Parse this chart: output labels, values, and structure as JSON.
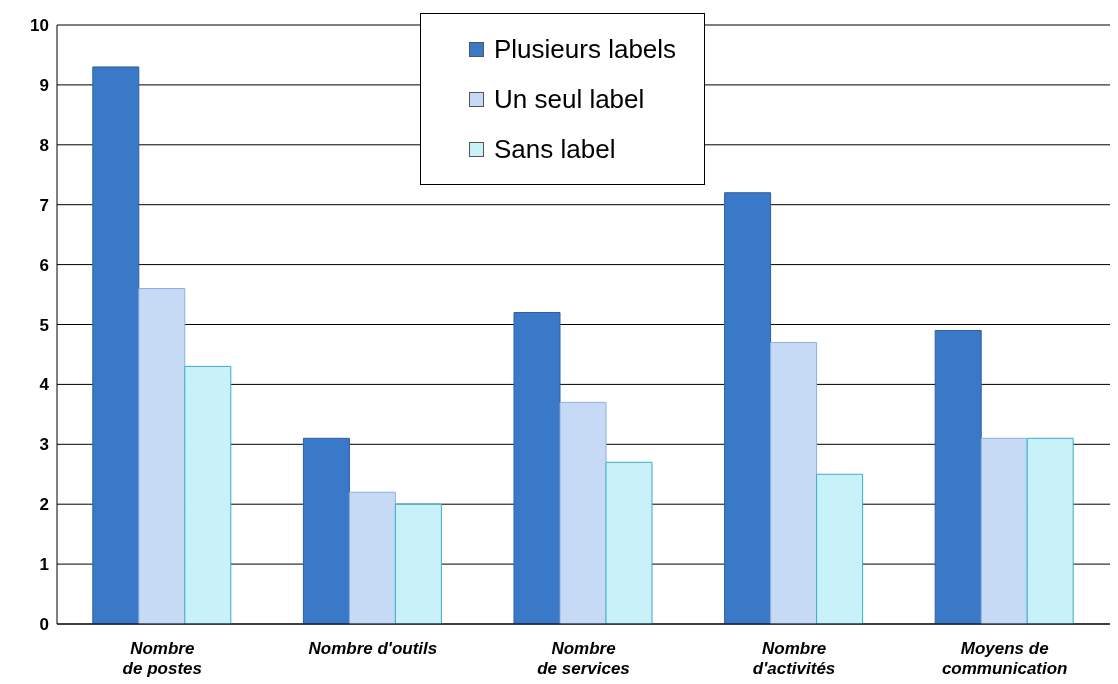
{
  "chart_data": {
    "type": "bar",
    "categories": [
      "Nombre\nde postes",
      "Nombre d'outils",
      "Nombre\nde services",
      "Nombre\nd'activités",
      "Moyens de\ncommunication"
    ],
    "series": [
      {
        "name": "Plusieurs labels",
        "color": "#3a78c8",
        "values": [
          9.3,
          3.1,
          5.2,
          7.2,
          4.9
        ]
      },
      {
        "name": "Un seul label",
        "color": "#c6d9f5",
        "values": [
          5.6,
          2.2,
          3.7,
          4.7,
          3.1
        ]
      },
      {
        "name": "Sans label",
        "color": "#c9f1fa",
        "values": [
          4.3,
          2.0,
          2.7,
          2.5,
          3.1
        ]
      }
    ],
    "ylim": [
      0,
      10
    ],
    "yticks": [
      0,
      1,
      2,
      3,
      4,
      5,
      6,
      7,
      8,
      9,
      10
    ],
    "grid": "y",
    "legend": "top"
  }
}
